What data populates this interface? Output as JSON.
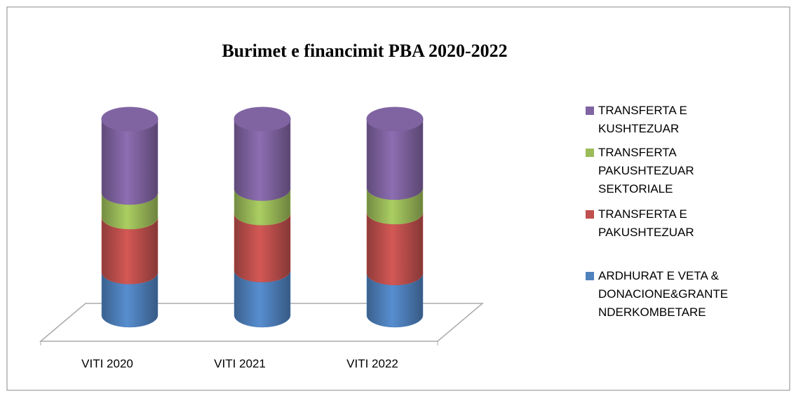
{
  "chart_data": {
    "type": "cylinder_stacked_bar",
    "title": "Burimet e financimit PBA 2020-2022",
    "categories": [
      "VITI 2020",
      "VITI 2021",
      "VITI 2022"
    ],
    "ylim": [
      0,
      100
    ],
    "series": [
      {
        "name": "ARDHURAT E VETA & DONACIONE&GRANTE NDERKOMBETARE",
        "color": "#4f81bd",
        "values": [
          22,
          23,
          21.5
        ]
      },
      {
        "name": "TRANSFERTA E PAKUSHTEZUAR",
        "color": "#c0504d",
        "values": [
          28,
          29,
          31
        ]
      },
      {
        "name": "TRANSFERTA PAKUSHTEZUAR SEKTORIALE",
        "color": "#9bbb59",
        "values": [
          12.5,
          12.5,
          12.5
        ]
      },
      {
        "name": "TRANSFERTA E KUSHTEZUAR",
        "color": "#8064a2",
        "values": [
          37.5,
          35.5,
          35
        ]
      }
    ]
  }
}
